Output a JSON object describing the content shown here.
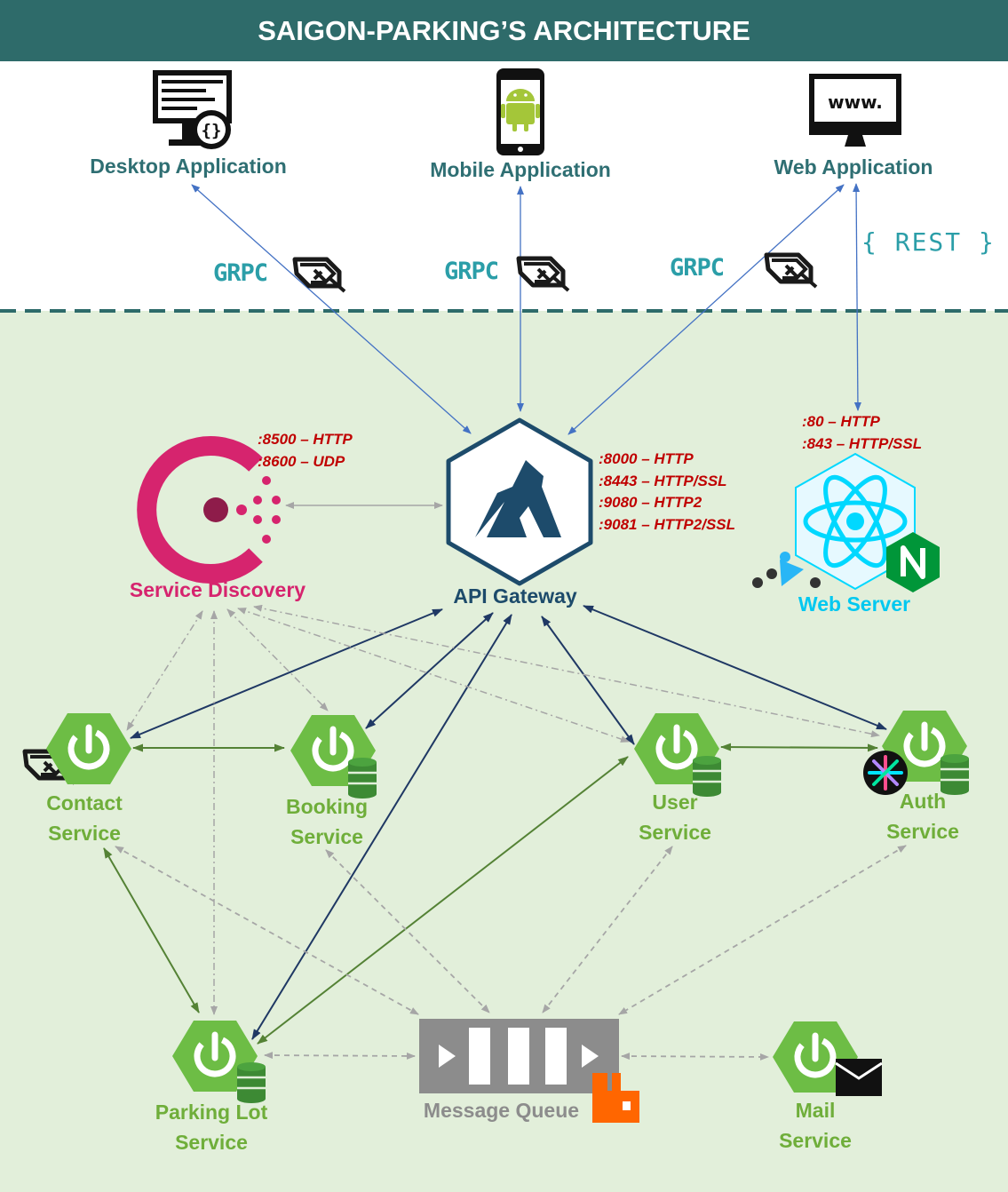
{
  "title": "SAIGON-PARKING’S ARCHITECTURE",
  "clients": {
    "desktop": "Desktop Application",
    "mobile": "Mobile Application",
    "web": "Web Application"
  },
  "protocols": {
    "grpc": "GRPC",
    "rest": "{ REST }"
  },
  "gateway": {
    "label": "API Gateway",
    "ports": [
      ":8000 – HTTP",
      ":8443 – HTTP/SSL",
      ":9080 – HTTP2",
      ":9081 – HTTP2/SSL"
    ]
  },
  "discovery": {
    "label": "Service Discovery",
    "ports": [
      ":8500 – HTTP",
      ":8600 – UDP"
    ]
  },
  "webserver": {
    "label": "Web Server",
    "ports": [
      ":80 – HTTP",
      ":843 – HTTP/SSL"
    ]
  },
  "services": {
    "contact": [
      "Contact",
      "Service"
    ],
    "booking": [
      "Booking",
      "Service"
    ],
    "user": [
      "User",
      "Service"
    ],
    "auth": [
      "Auth",
      "Service"
    ],
    "parking": [
      "Parking Lot",
      "Service"
    ],
    "mail": [
      "Mail",
      "Service"
    ]
  },
  "queue": {
    "label": "Message Queue"
  },
  "colors": {
    "header": "#2e6b6a",
    "service_green": "#6fae3a",
    "link_blue": "#4472c4",
    "link_navy": "#1f3864",
    "link_green": "#548235",
    "discovery_pink": "#d6246e",
    "port_red": "#c00000",
    "react_cyan": "#00d8ff",
    "nginx_green": "#009639",
    "rabbit_orange": "#ff6600"
  }
}
